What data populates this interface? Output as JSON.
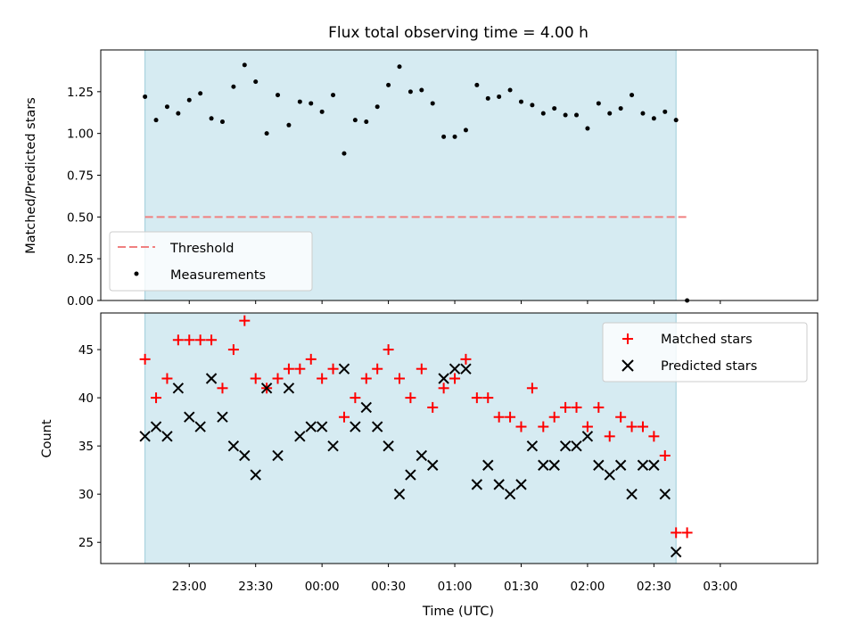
{
  "chart_data": [
    {
      "type": "scatter",
      "title": "Flux total observing time = 4.00 h",
      "xlabel": "",
      "ylabel": "Matched/Predicted stars",
      "ylim": [
        0,
        1.5
      ],
      "yticks": [
        "0.00",
        "0.25",
        "0.50",
        "0.75",
        "1.00",
        "1.25"
      ],
      "ytick_values": [
        0,
        0.25,
        0.5,
        0.75,
        1.0,
        1.25
      ],
      "xlim_minutes": [
        -40,
        284
      ],
      "observing_window_minutes": [
        -20,
        220
      ],
      "threshold": {
        "name": "Threshold",
        "value": 0.5,
        "x_minutes": [
          -20,
          225
        ],
        "color": "#f08080"
      },
      "series": [
        {
          "name": "Measurements",
          "color": "#000000",
          "x_minutes": [
            -20,
            -15,
            -10,
            -5,
            0,
            5,
            10,
            15,
            20,
            25,
            30,
            35,
            40,
            45,
            50,
            55,
            60,
            65,
            70,
            75,
            80,
            85,
            90,
            95,
            100,
            105,
            110,
            115,
            120,
            125,
            130,
            135,
            140,
            145,
            150,
            155,
            160,
            165,
            170,
            175,
            180,
            185,
            190,
            195,
            200,
            205,
            210,
            215,
            220,
            225
          ],
          "values": [
            1.22,
            1.08,
            1.16,
            1.12,
            1.2,
            1.24,
            1.09,
            1.07,
            1.28,
            1.41,
            1.31,
            1.0,
            1.23,
            1.05,
            1.19,
            1.18,
            1.13,
            1.23,
            0.88,
            1.08,
            1.07,
            1.16,
            1.29,
            1.4,
            1.25,
            1.26,
            1.18,
            0.98,
            0.98,
            1.02,
            1.29,
            1.21,
            1.22,
            1.26,
            1.19,
            1.17,
            1.12,
            1.15,
            1.11,
            1.11,
            1.03,
            1.18,
            1.12,
            1.15,
            1.23,
            1.12,
            1.09,
            1.13,
            1.08,
            0.0
          ]
        }
      ]
    },
    {
      "type": "scatter",
      "title": "",
      "xlabel": "Time (UTC)",
      "ylabel": "Count",
      "ylim": [
        22.8,
        48.8
      ],
      "yticks": [
        "25",
        "30",
        "35",
        "40",
        "45"
      ],
      "ytick_values": [
        25,
        30,
        35,
        40,
        45
      ],
      "xticks": [
        "23:00",
        "23:30",
        "00:00",
        "00:30",
        "01:00",
        "01:30",
        "02:00",
        "02:30",
        "03:00"
      ],
      "xtick_minutes": [
        0,
        30,
        60,
        90,
        120,
        150,
        180,
        210,
        240
      ],
      "xlim_minutes": [
        -40,
        284
      ],
      "observing_window_minutes": [
        -20,
        220
      ],
      "series": [
        {
          "name": "Matched stars",
          "marker": "+",
          "color": "#ff0000",
          "x_minutes": [
            -20,
            -15,
            -10,
            -5,
            0,
            5,
            10,
            15,
            20,
            25,
            30,
            35,
            40,
            45,
            50,
            55,
            60,
            65,
            70,
            75,
            80,
            85,
            90,
            95,
            100,
            105,
            110,
            115,
            120,
            125,
            130,
            135,
            140,
            145,
            150,
            155,
            160,
            165,
            170,
            175,
            180,
            185,
            190,
            195,
            200,
            205,
            210,
            215,
            220,
            225
          ],
          "values": [
            44,
            40,
            42,
            46,
            46,
            46,
            46,
            41,
            45,
            48,
            42,
            41,
            42,
            43,
            43,
            44,
            42,
            43,
            38,
            40,
            42,
            43,
            45,
            42,
            40,
            43,
            39,
            41,
            42,
            44,
            40,
            40,
            38,
            38,
            37,
            41,
            37,
            38,
            39,
            39,
            37,
            39,
            36,
            38,
            37,
            37,
            36,
            34,
            26,
            26
          ]
        },
        {
          "name": "Predicted stars",
          "marker": "x",
          "color": "#000000",
          "x_minutes": [
            -20,
            -15,
            -10,
            -5,
            0,
            5,
            10,
            15,
            20,
            25,
            30,
            35,
            40,
            45,
            50,
            55,
            60,
            65,
            70,
            75,
            80,
            85,
            90,
            95,
            100,
            105,
            110,
            115,
            120,
            125,
            130,
            135,
            140,
            145,
            150,
            155,
            160,
            165,
            170,
            175,
            180,
            185,
            190,
            195,
            200,
            205,
            210,
            215,
            220
          ],
          "values": [
            36,
            37,
            36,
            41,
            38,
            37,
            42,
            38,
            35,
            34,
            32,
            41,
            34,
            41,
            36,
            37,
            37,
            35,
            43,
            37,
            39,
            37,
            35,
            30,
            32,
            34,
            33,
            42,
            43,
            43,
            31,
            33,
            31,
            30,
            31,
            35,
            33,
            33,
            35,
            35,
            36,
            33,
            32,
            33,
            30,
            33,
            33,
            30,
            24
          ]
        }
      ]
    }
  ]
}
